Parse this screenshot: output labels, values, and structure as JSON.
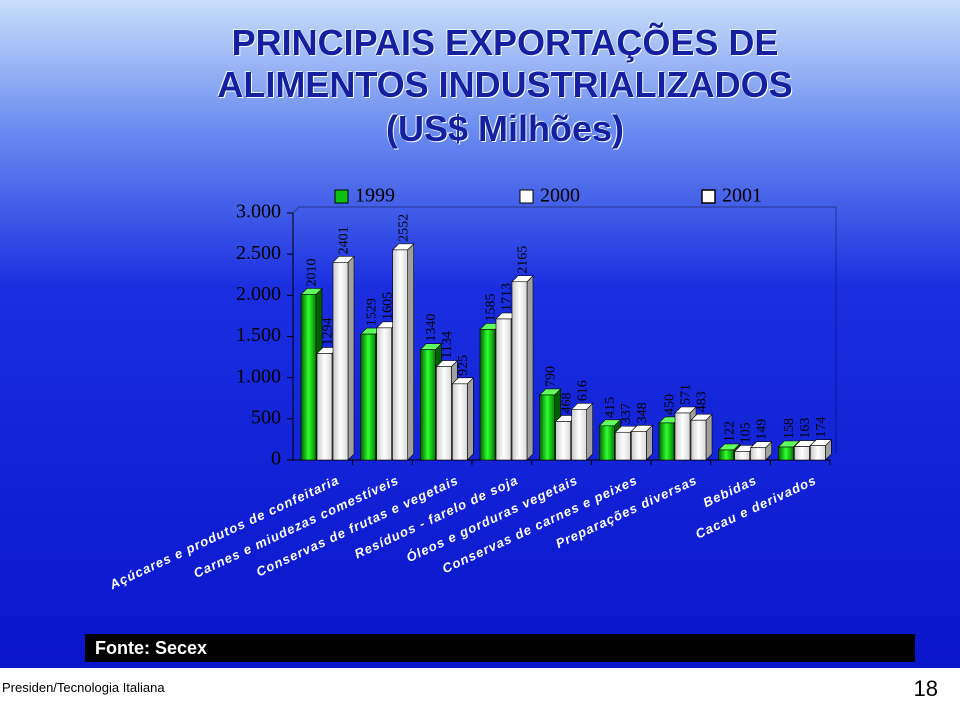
{
  "title_lines": [
    "PRINCIPAIS EXPORTAÇÕES DE",
    "ALIMENTOS INDUSTRIALIZADOS",
    "(US$ Milhões)"
  ],
  "source": "Fonte: Secex",
  "footer": "Presiden/Tecnologia Italiana",
  "page_number": "18",
  "chart_data": {
    "type": "bar3d",
    "categories": [
      "Açúcares e produtos de confeitaria",
      "Carnes e miudezas comestíveis",
      "Conservas de frutas e vegetais",
      "Resíduos - farelo de soja",
      "Óleos e gorduras vegetais",
      "Conservas de carnes e peixes",
      "Preparações diversas",
      "Bebidas",
      "Cacau e derivados"
    ],
    "series": [
      {
        "name": "1999",
        "color": "#10c010",
        "values": [
          2010,
          1529,
          1340,
          1585,
          790,
          415,
          450,
          122,
          158
        ]
      },
      {
        "name": "2000",
        "color": "#ffffff",
        "values": [
          1294,
          1605,
          1134,
          1713,
          468,
          337,
          571,
          105,
          163
        ]
      },
      {
        "name": "2001",
        "color": "#ffffff",
        "values": [
          2401,
          2552,
          925,
          2165,
          616,
          348,
          483,
          149,
          174
        ]
      }
    ],
    "ylim": [
      0,
      3000
    ],
    "yticks": [
      0,
      500,
      {
        "value": 1000,
        "label": "1.000"
      },
      {
        "value": 1500,
        "label": "1.500"
      },
      {
        "value": 2000,
        "label": "2.000"
      },
      {
        "value": 2500,
        "label": "2.500"
      },
      {
        "value": 3000,
        "label": "3.000"
      }
    ]
  }
}
